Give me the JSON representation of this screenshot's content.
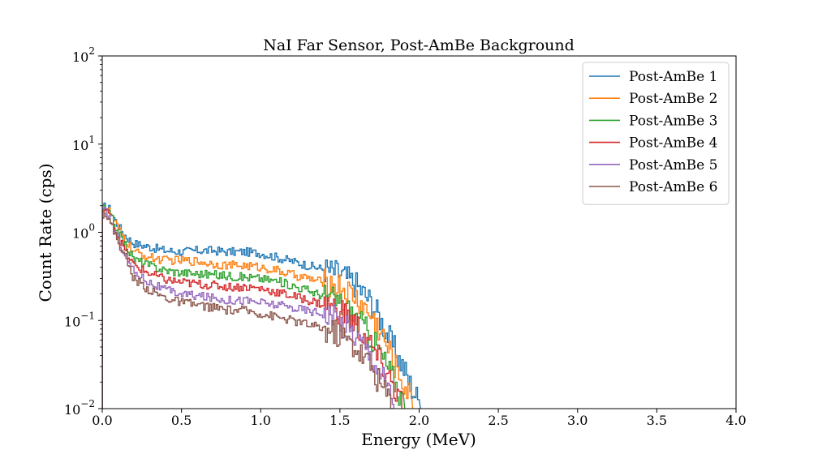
{
  "chart_data": {
    "type": "line",
    "title": "NaI Far Sensor, Post-AmBe Background",
    "xlabel": "Energy (MeV)",
    "ylabel": "Count Rate (cps)",
    "xlim": [
      0.0,
      4.0
    ],
    "ylim": [
      0.01,
      100
    ],
    "yscale": "log",
    "grid": false,
    "legend_position": "top-right",
    "x_ticks": [
      "0.0",
      "0.5",
      "1.0",
      "1.5",
      "2.0",
      "2.5",
      "3.0",
      "3.5",
      "4.0"
    ],
    "x_tick_values": [
      0.0,
      0.5,
      1.0,
      1.5,
      2.0,
      2.5,
      3.0,
      3.5,
      4.0
    ],
    "y_ticks": [
      {
        "value": 100,
        "base": "10",
        "exp": "2"
      },
      {
        "value": 10,
        "base": "10",
        "exp": "1"
      },
      {
        "value": 1,
        "base": "10",
        "exp": "0"
      },
      {
        "value": 0.1,
        "base": "10",
        "exp": "−1"
      },
      {
        "value": 0.01,
        "base": "10",
        "exp": "−2"
      }
    ],
    "series": [
      {
        "name": "Post-AmBe 1",
        "color": "#1f77b4",
        "x": [
          0.0,
          0.02,
          0.05,
          0.1,
          0.15,
          0.2,
          0.3,
          0.4,
          0.5,
          0.6,
          0.7,
          0.8,
          0.9,
          1.0,
          1.1,
          1.2,
          1.3,
          1.4,
          1.5,
          1.6,
          1.7,
          1.75,
          1.8,
          1.85,
          1.9,
          1.95,
          2.0
        ],
        "y": [
          1.8,
          2.0,
          1.8,
          1.2,
          0.9,
          0.75,
          0.68,
          0.62,
          0.6,
          0.62,
          0.62,
          0.6,
          0.6,
          0.58,
          0.52,
          0.47,
          0.42,
          0.38,
          0.34,
          0.26,
          0.16,
          0.11,
          0.07,
          0.045,
          0.03,
          0.018,
          0.012
        ]
      },
      {
        "name": "Post-AmBe 2",
        "color": "#ff7f0e",
        "x": [
          0.0,
          0.02,
          0.05,
          0.1,
          0.15,
          0.2,
          0.3,
          0.4,
          0.5,
          0.6,
          0.7,
          0.8,
          0.9,
          1.0,
          1.1,
          1.2,
          1.3,
          1.4,
          1.5,
          1.6,
          1.7,
          1.75,
          1.8,
          1.85,
          1.9,
          1.95
        ],
        "y": [
          1.8,
          1.9,
          1.7,
          1.1,
          0.8,
          0.6,
          0.52,
          0.48,
          0.48,
          0.47,
          0.44,
          0.42,
          0.42,
          0.4,
          0.37,
          0.33,
          0.3,
          0.27,
          0.24,
          0.18,
          0.11,
          0.08,
          0.05,
          0.03,
          0.02,
          0.012
        ]
      },
      {
        "name": "Post-AmBe 3",
        "color": "#2ca02c",
        "x": [
          0.0,
          0.02,
          0.05,
          0.1,
          0.15,
          0.2,
          0.3,
          0.4,
          0.5,
          0.6,
          0.7,
          0.8,
          0.9,
          1.0,
          1.1,
          1.2,
          1.3,
          1.4,
          1.5,
          1.6,
          1.7,
          1.75,
          1.8,
          1.85,
          1.9
        ],
        "y": [
          1.8,
          1.85,
          1.6,
          1.0,
          0.7,
          0.5,
          0.42,
          0.37,
          0.35,
          0.34,
          0.33,
          0.32,
          0.31,
          0.3,
          0.28,
          0.25,
          0.22,
          0.19,
          0.16,
          0.11,
          0.065,
          0.045,
          0.03,
          0.02,
          0.012
        ]
      },
      {
        "name": "Post-AmBe 4",
        "color": "#d62728",
        "x": [
          0.0,
          0.02,
          0.05,
          0.1,
          0.15,
          0.2,
          0.3,
          0.4,
          0.5,
          0.6,
          0.7,
          0.8,
          0.9,
          1.0,
          1.1,
          1.2,
          1.3,
          1.4,
          1.5,
          1.6,
          1.7,
          1.75,
          1.8,
          1.85,
          1.9
        ],
        "y": [
          1.7,
          1.8,
          1.5,
          0.9,
          0.6,
          0.42,
          0.34,
          0.29,
          0.27,
          0.26,
          0.25,
          0.24,
          0.24,
          0.23,
          0.21,
          0.19,
          0.17,
          0.15,
          0.13,
          0.09,
          0.05,
          0.035,
          0.025,
          0.016,
          0.011
        ]
      },
      {
        "name": "Post-AmBe 5",
        "color": "#9467bd",
        "x": [
          0.0,
          0.02,
          0.05,
          0.1,
          0.15,
          0.2,
          0.3,
          0.4,
          0.5,
          0.6,
          0.7,
          0.8,
          0.9,
          1.0,
          1.1,
          1.2,
          1.3,
          1.4,
          1.5,
          1.6,
          1.7,
          1.75,
          1.8,
          1.85
        ],
        "y": [
          1.7,
          1.75,
          1.4,
          0.85,
          0.55,
          0.36,
          0.27,
          0.22,
          0.2,
          0.19,
          0.18,
          0.17,
          0.17,
          0.16,
          0.15,
          0.14,
          0.13,
          0.12,
          0.1,
          0.07,
          0.04,
          0.028,
          0.018,
          0.011
        ]
      },
      {
        "name": "Post-AmBe 6",
        "color": "#8c564b",
        "x": [
          0.0,
          0.02,
          0.05,
          0.1,
          0.15,
          0.2,
          0.3,
          0.4,
          0.5,
          0.6,
          0.7,
          0.8,
          0.9,
          1.0,
          1.1,
          1.2,
          1.3,
          1.4,
          1.5,
          1.6,
          1.7,
          1.75,
          1.8,
          1.85
        ],
        "y": [
          1.6,
          1.7,
          1.3,
          0.8,
          0.5,
          0.3,
          0.22,
          0.18,
          0.16,
          0.15,
          0.14,
          0.13,
          0.13,
          0.12,
          0.11,
          0.1,
          0.09,
          0.08,
          0.07,
          0.05,
          0.03,
          0.02,
          0.014,
          0.01
        ]
      }
    ]
  }
}
